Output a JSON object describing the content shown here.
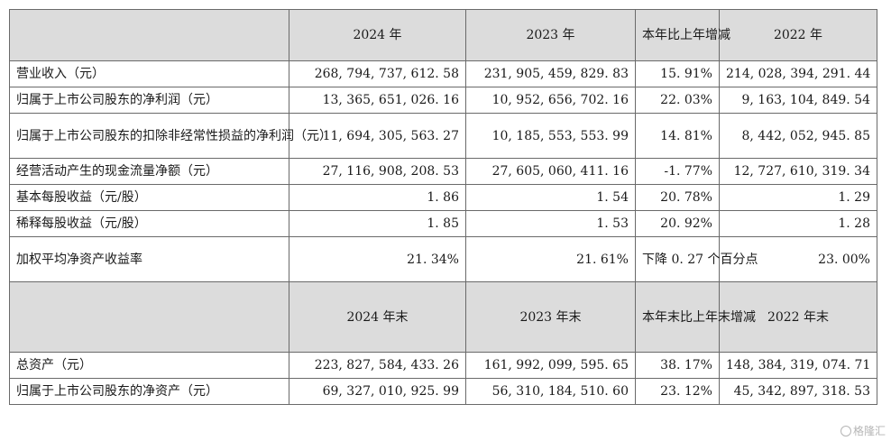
{
  "header1": {
    "col_2024": "2024 年",
    "col_2023": "2023 年",
    "col_change": "本年比上年增减",
    "col_2022": "2022 年"
  },
  "header2": {
    "col_2024": "2024 年末",
    "col_2023": "2023 年末",
    "col_change": "本年末比上年末增减",
    "col_2022": "2022 年末"
  },
  "rows_period": [
    {
      "label": "营业收入（元）",
      "v2024": "268, 794, 737, 612. 58",
      "v2023": "231, 905, 459, 829. 83",
      "change": "15. 91%",
      "v2022": "214, 028, 394, 291. 44"
    },
    {
      "label": "归属于上市公司股东的净利润（元）",
      "v2024": "13, 365, 651, 026. 16",
      "v2023": "10, 952, 656, 702. 16",
      "change": "22. 03%",
      "v2022": "9, 163, 104, 849. 54"
    },
    {
      "label": "归属于上市公司股东的扣除非经常性损益的净利润（元）",
      "v2024": "11, 694, 305, 563. 27",
      "v2023": "10, 185, 553, 553. 99",
      "change": "14. 81%",
      "v2022": "8, 442, 052, 945. 85"
    },
    {
      "label": "经营活动产生的现金流量净额（元）",
      "v2024": "27, 116, 908, 208. 53",
      "v2023": "27, 605, 060, 411. 16",
      "change": "-1. 77%",
      "v2022": "12, 727, 610, 319. 34"
    },
    {
      "label": "基本每股收益（元/股）",
      "v2024": "1. 86",
      "v2023": "1. 54",
      "change": "20. 78%",
      "v2022": "1. 29"
    },
    {
      "label": "稀释每股收益（元/股）",
      "v2024": "1. 85",
      "v2023": "1. 53",
      "change": "20. 92%",
      "v2022": "1. 28"
    },
    {
      "label": "加权平均净资产收益率",
      "v2024": "21. 34%",
      "v2023": "21. 61%",
      "change": "下降 0. 27 个百分点",
      "v2022": "23. 00%"
    }
  ],
  "rows_end": [
    {
      "label": "总资产（元）",
      "v2024": "223, 827, 584, 433. 26",
      "v2023": "161, 992, 099, 595. 65",
      "change": "38. 17%",
      "v2022": "148, 384, 319, 074. 71"
    },
    {
      "label": "归属于上市公司股东的净资产（元）",
      "v2024": "69, 327, 010, 925. 99",
      "v2023": "56, 310, 184, 510. 60",
      "change": "23. 12%",
      "v2022": "45, 342, 897, 318. 53"
    }
  ],
  "watermark": "格隆汇"
}
